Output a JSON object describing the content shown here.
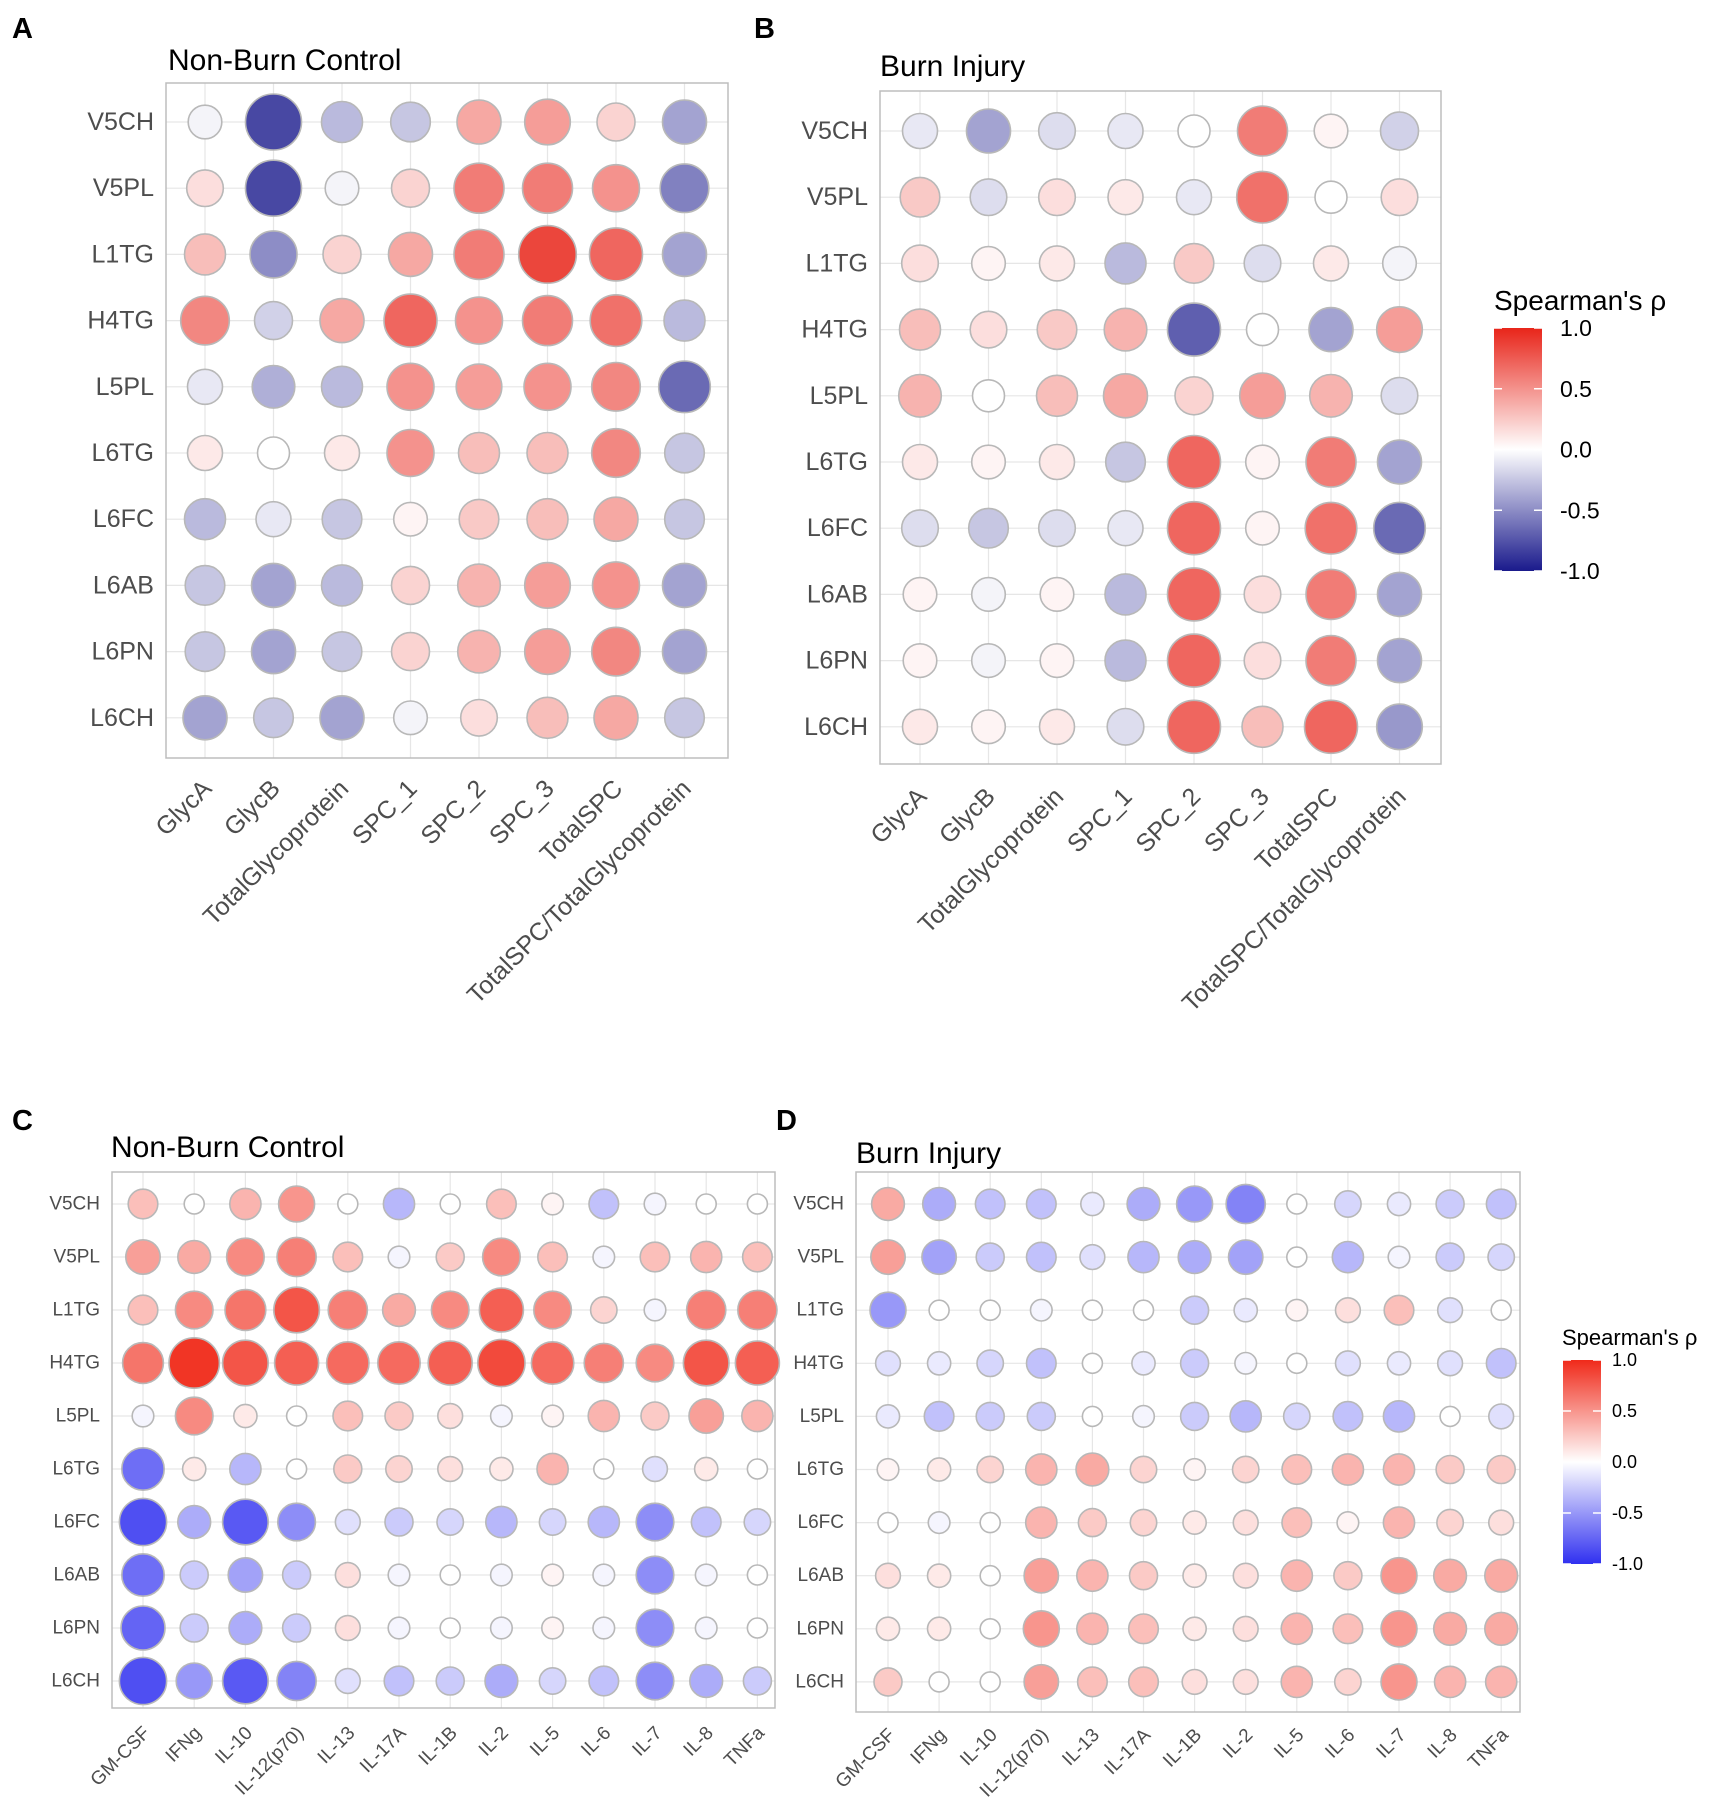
{
  "figure": {
    "panel_letters": [
      "A",
      "B",
      "C",
      "D"
    ]
  },
  "chart_data": [
    {
      "panel": "A",
      "type": "bubble-correlation-matrix",
      "title": "Non-Burn Control",
      "rows": [
        "V5CH",
        "V5PL",
        "L1TG",
        "H4TG",
        "L5PL",
        "L6TG",
        "L6FC",
        "L6AB",
        "L6PN",
        "L6CH"
      ],
      "columns": [
        "GlycA",
        "GlycB",
        "TotalGlycoprotein",
        "SPC_1",
        "SPC_2",
        "SPC_3",
        "TotalSPC",
        "TotalSPC/TotalGlycoprotein"
      ],
      "values": [
        [
          -0.05,
          -0.8,
          -0.3,
          -0.25,
          0.4,
          0.45,
          0.2,
          -0.4
        ],
        [
          0.15,
          -0.8,
          -0.05,
          0.2,
          0.6,
          0.6,
          0.5,
          -0.55
        ],
        [
          0.3,
          -0.5,
          0.2,
          0.4,
          0.6,
          0.85,
          0.7,
          -0.4
        ],
        [
          0.55,
          -0.2,
          0.4,
          0.7,
          0.5,
          0.6,
          0.65,
          -0.3
        ],
        [
          -0.1,
          -0.35,
          -0.3,
          0.5,
          0.45,
          0.5,
          0.55,
          -0.65
        ],
        [
          0.1,
          0.0,
          0.1,
          0.5,
          0.3,
          0.3,
          0.55,
          -0.25
        ],
        [
          -0.3,
          -0.1,
          -0.25,
          0.05,
          0.25,
          0.3,
          0.4,
          -0.25
        ],
        [
          -0.25,
          -0.4,
          -0.3,
          0.2,
          0.35,
          0.45,
          0.5,
          -0.4
        ],
        [
          -0.25,
          -0.4,
          -0.25,
          0.2,
          0.35,
          0.45,
          0.55,
          -0.4
        ],
        [
          -0.4,
          -0.25,
          -0.4,
          -0.05,
          0.15,
          0.3,
          0.4,
          -0.25
        ]
      ],
      "color_scale": {
        "low": "#1a1a8c",
        "mid": "#ffffff",
        "high": "#e8251a",
        "range": [
          -1.0,
          1.0
        ]
      }
    },
    {
      "panel": "B",
      "type": "bubble-correlation-matrix",
      "title": "Burn Injury",
      "rows": [
        "V5CH",
        "V5PL",
        "L1TG",
        "H4TG",
        "L5PL",
        "L6TG",
        "L6FC",
        "L6AB",
        "L6PN",
        "L6CH"
      ],
      "columns": [
        "GlycA",
        "GlycB",
        "TotalGlycoprotein",
        "SPC_1",
        "SPC_2",
        "SPC_3",
        "TotalSPC",
        "TotalSPC/TotalGlycoprotein"
      ],
      "values": [
        [
          -0.1,
          -0.4,
          -0.15,
          -0.1,
          0.0,
          0.6,
          0.05,
          -0.2
        ],
        [
          0.25,
          -0.15,
          0.15,
          0.1,
          -0.1,
          0.65,
          0.0,
          0.15
        ],
        [
          0.15,
          0.05,
          0.1,
          -0.3,
          0.25,
          -0.15,
          0.1,
          -0.05
        ],
        [
          0.3,
          0.15,
          0.25,
          0.35,
          -0.7,
          0.0,
          -0.4,
          0.45
        ],
        [
          0.35,
          0.0,
          0.3,
          0.4,
          0.2,
          0.45,
          0.35,
          -0.15
        ],
        [
          0.1,
          0.05,
          0.1,
          -0.25,
          0.7,
          0.05,
          0.6,
          -0.4
        ],
        [
          -0.15,
          -0.25,
          -0.15,
          -0.1,
          0.7,
          0.05,
          0.65,
          -0.65
        ],
        [
          0.05,
          -0.05,
          0.05,
          -0.3,
          0.7,
          0.15,
          0.6,
          -0.4
        ],
        [
          0.05,
          -0.05,
          0.05,
          -0.3,
          0.7,
          0.15,
          0.6,
          -0.4
        ],
        [
          0.1,
          0.05,
          0.1,
          -0.15,
          0.7,
          0.3,
          0.7,
          -0.45
        ]
      ],
      "color_scale": {
        "low": "#1a1a8c",
        "mid": "#ffffff",
        "high": "#e8251a",
        "range": [
          -1.0,
          1.0
        ]
      }
    },
    {
      "panel": "C",
      "type": "bubble-correlation-matrix",
      "title": "Non-Burn Control",
      "rows": [
        "V5CH",
        "V5PL",
        "L1TG",
        "H4TG",
        "L5PL",
        "L6TG",
        "L6FC",
        "L6AB",
        "L6PN",
        "L6CH"
      ],
      "columns": [
        "GM-CSF",
        "IFNg",
        "IL-10",
        "IL-12(p70)",
        "IL-13",
        "IL-17A",
        "IL-1B",
        "IL-2",
        "IL-5",
        "IL-6",
        "IL-7",
        "IL-8",
        "TNFa"
      ],
      "values": [
        [
          0.3,
          0.0,
          0.35,
          0.5,
          0.0,
          -0.35,
          0.0,
          0.3,
          0.05,
          -0.3,
          -0.05,
          0.0,
          0.0
        ],
        [
          0.45,
          0.4,
          0.55,
          0.6,
          0.3,
          -0.05,
          0.25,
          0.55,
          0.3,
          -0.05,
          0.3,
          0.35,
          0.3
        ],
        [
          0.3,
          0.55,
          0.65,
          0.8,
          0.6,
          0.4,
          0.55,
          0.75,
          0.55,
          0.2,
          -0.05,
          0.6,
          0.6
        ],
        [
          0.65,
          0.95,
          0.8,
          0.75,
          0.7,
          0.7,
          0.75,
          0.85,
          0.7,
          0.6,
          0.55,
          0.8,
          0.75
        ],
        [
          -0.05,
          0.55,
          0.1,
          0.0,
          0.3,
          0.25,
          0.15,
          -0.05,
          0.05,
          0.35,
          0.25,
          0.45,
          0.35
        ],
        [
          -0.7,
          0.1,
          -0.35,
          0.0,
          0.25,
          0.2,
          0.15,
          0.1,
          0.35,
          0.0,
          -0.15,
          0.1,
          0.0
        ],
        [
          -0.85,
          -0.4,
          -0.8,
          -0.55,
          -0.15,
          -0.25,
          -0.2,
          -0.35,
          -0.2,
          -0.35,
          -0.55,
          -0.3,
          -0.2
        ],
        [
          -0.7,
          -0.25,
          -0.45,
          -0.25,
          0.15,
          -0.05,
          0.0,
          -0.05,
          0.05,
          -0.05,
          -0.55,
          -0.05,
          0.0
        ],
        [
          -0.75,
          -0.25,
          -0.4,
          -0.25,
          0.15,
          -0.05,
          0.0,
          -0.05,
          0.05,
          -0.05,
          -0.55,
          -0.05,
          0.0
        ],
        [
          -0.85,
          -0.5,
          -0.8,
          -0.6,
          -0.15,
          -0.3,
          -0.25,
          -0.4,
          -0.2,
          -0.3,
          -0.55,
          -0.4,
          -0.25
        ]
      ],
      "color_scale": {
        "low": "#3030f0",
        "mid": "#ffffff",
        "high": "#f02a1a",
        "range": [
          -1.0,
          1.0
        ]
      }
    },
    {
      "panel": "D",
      "type": "bubble-correlation-matrix",
      "title": "Burn Injury",
      "rows": [
        "V5CH",
        "V5PL",
        "L1TG",
        "H4TG",
        "L5PL",
        "L6TG",
        "L6FC",
        "L6AB",
        "L6PN",
        "L6CH"
      ],
      "columns": [
        "GM-CSF",
        "IFNg",
        "IL-10",
        "IL-12(p70)",
        "IL-13",
        "IL-17A",
        "IL-1B",
        "IL-2",
        "IL-5",
        "IL-6",
        "IL-7",
        "IL-8",
        "TNFa"
      ],
      "values": [
        [
          0.4,
          -0.4,
          -0.3,
          -0.3,
          -0.1,
          -0.4,
          -0.5,
          -0.6,
          0.0,
          -0.2,
          -0.1,
          -0.25,
          -0.3
        ],
        [
          0.45,
          -0.45,
          -0.25,
          -0.3,
          -0.15,
          -0.35,
          -0.4,
          -0.45,
          0.0,
          -0.35,
          -0.05,
          -0.25,
          -0.2
        ],
        [
          -0.5,
          0.0,
          0.0,
          -0.05,
          0.0,
          0.0,
          -0.25,
          -0.1,
          0.05,
          0.15,
          0.3,
          -0.15,
          0.0
        ],
        [
          -0.15,
          -0.1,
          -0.2,
          -0.3,
          0.0,
          -0.1,
          -0.25,
          -0.05,
          0.0,
          -0.15,
          -0.1,
          -0.15,
          -0.3
        ],
        [
          -0.1,
          -0.3,
          -0.25,
          -0.25,
          0.0,
          -0.05,
          -0.25,
          -0.35,
          -0.2,
          -0.3,
          -0.35,
          0.0,
          -0.15
        ],
        [
          0.05,
          0.1,
          0.2,
          0.35,
          0.4,
          0.2,
          0.05,
          0.2,
          0.3,
          0.35,
          0.35,
          0.25,
          0.25
        ],
        [
          0.0,
          -0.05,
          0.0,
          0.35,
          0.25,
          0.2,
          0.1,
          0.15,
          0.3,
          0.05,
          0.35,
          0.2,
          0.15
        ],
        [
          0.15,
          0.1,
          0.0,
          0.45,
          0.35,
          0.25,
          0.1,
          0.15,
          0.35,
          0.25,
          0.5,
          0.4,
          0.4
        ],
        [
          0.1,
          0.1,
          0.0,
          0.5,
          0.35,
          0.3,
          0.1,
          0.15,
          0.35,
          0.3,
          0.5,
          0.4,
          0.4
        ],
        [
          0.25,
          0.0,
          0.0,
          0.45,
          0.3,
          0.3,
          0.15,
          0.15,
          0.35,
          0.2,
          0.5,
          0.35,
          0.35
        ]
      ],
      "color_scale": {
        "low": "#3030f0",
        "mid": "#ffffff",
        "high": "#f02a1a",
        "range": [
          -1.0,
          1.0
        ]
      }
    }
  ],
  "legends": [
    {
      "for_panels": "A-B",
      "title": "Spearman's ρ",
      "ticks": [
        "1.0",
        "0.5",
        "0.0",
        "-0.5",
        "-1.0"
      ],
      "tick_values": [
        1.0,
        0.5,
        0.0,
        -0.5,
        -1.0
      ],
      "colors": {
        "low": "#1a1a8c",
        "mid": "#ffffff",
        "high": "#e8251a"
      }
    },
    {
      "for_panels": "C-D",
      "title": "Spearman's ρ",
      "ticks": [
        "1.0",
        "0.5",
        "0.0",
        "-0.5",
        "-1.0"
      ],
      "tick_values": [
        1.0,
        0.5,
        0.0,
        -0.5,
        -1.0
      ],
      "colors": {
        "low": "#3030f0",
        "mid": "#ffffff",
        "high": "#f02a1a"
      }
    }
  ]
}
